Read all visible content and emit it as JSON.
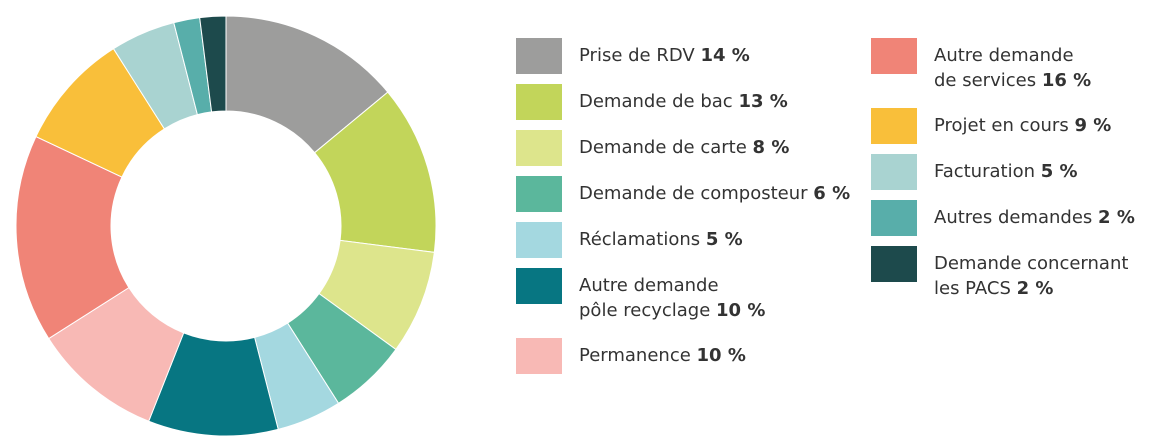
{
  "chart_data": {
    "type": "donut",
    "categories": [
      "Prise de RDV",
      "Demande de bac",
      "Demande de carte",
      "Demande de composteur",
      "Réclamations",
      "Autre demande\npôle recyclage",
      "Permanence",
      "Autre demande\nde services",
      "Projet en cours",
      "Facturation",
      "Autres demandes",
      "Demande concernant\nles PACS"
    ],
    "values": [
      14,
      13,
      8,
      6,
      5,
      10,
      10,
      16,
      9,
      5,
      2,
      2
    ],
    "value_labels": [
      "14 %",
      "13 %",
      "8 %",
      "6 %",
      "5 %",
      "10 %",
      "10 %",
      "16 %",
      "9 %",
      "5 %",
      "2 %",
      "2 %"
    ],
    "colors": [
      "#9d9d9c",
      "#c2d55a",
      "#dde58c",
      "#5bb79c",
      "#a4d8e0",
      "#077682",
      "#f8b9b5",
      "#f08477",
      "#f9bf3a",
      "#a9d3d1",
      "#58aeaa",
      "#1d4a4c"
    ]
  }
}
